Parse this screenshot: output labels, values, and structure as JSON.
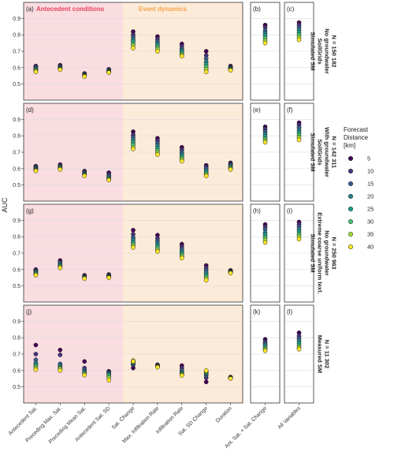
{
  "y_axis_label": "AUC",
  "y_ticks": [
    "0.5",
    "0.6",
    "0.7",
    "0.8",
    "0.9"
  ],
  "region_labels": {
    "antecedent": "Antecedent conditions",
    "event": "Event dynamics"
  },
  "colors": {
    "antecedent_bg": "#f9dde1",
    "event_bg": "#fcebd8",
    "antecedent_title": "#e8425e",
    "event_title": "#f5a24a",
    "panel_border": "#333333",
    "grid": "#dcdcdc"
  },
  "x_categories": [
    "Antecedent Sat.",
    "Preceding Max. Sat.",
    "Preceding Mean Sat.",
    "Antecedent Sat. SD",
    "Sat. Change",
    "Max. Infiltration Rate",
    "Infiltration Rate",
    "Sat. SD Change",
    "Duration"
  ],
  "x_category_b": "Ant. Sat. + Sat. Change",
  "x_category_c": "All Variables",
  "legend": {
    "title_lines": [
      "Forecast",
      "Distance",
      "[km]"
    ],
    "items": [
      {
        "label": "5",
        "color": "#440154"
      },
      {
        "label": "10",
        "color": "#46327e"
      },
      {
        "label": "15",
        "color": "#365c8d"
      },
      {
        "label": "20",
        "color": "#277f8e"
      },
      {
        "label": "25",
        "color": "#1fa187"
      },
      {
        "label": "30",
        "color": "#4ac16d"
      },
      {
        "label": "35",
        "color": "#a0da39"
      },
      {
        "label": "40",
        "color": "#fde725"
      }
    ]
  },
  "chart_data": {
    "type": "scatter",
    "ylabel": "AUC",
    "ylim": [
      0.45,
      0.95
    ],
    "series_names": [
      "5",
      "10",
      "15",
      "20",
      "25",
      "30",
      "35",
      "40"
    ],
    "rows": [
      {
        "strip_lines": [
          "Simulated SM",
          "SoilGrids",
          "No groundwater",
          "N = 150 182"
        ],
        "panels": [
          {
            "tag": "(a)",
            "categories": [
              "Antecedent Sat.",
              "Preceding Max. Sat.",
              "Preceding Mean Sat.",
              "Antecedent Sat. SD",
              "Sat. Change",
              "Max. Infiltration Rate",
              "Infiltration Rate",
              "Sat. SD Change",
              "Duration"
            ],
            "values": [
              [
                0.61,
                0.605,
                0.6,
                0.595,
                0.59,
                0.585,
                0.58,
                0.575
              ],
              [
                0.615,
                0.61,
                0.605,
                0.6,
                0.597,
                0.594,
                0.591,
                0.588
              ],
              [
                0.565,
                0.562,
                0.559,
                0.556,
                0.553,
                0.55,
                0.548,
                0.546
              ],
              [
                0.59,
                0.587,
                0.584,
                0.581,
                0.578,
                0.575,
                0.572,
                0.57
              ],
              [
                0.82,
                0.8,
                0.785,
                0.77,
                0.76,
                0.745,
                0.735,
                0.72
              ],
              [
                0.79,
                0.775,
                0.76,
                0.748,
                0.736,
                0.725,
                0.713,
                0.7
              ],
              [
                0.745,
                0.73,
                0.715,
                0.705,
                0.695,
                0.685,
                0.677,
                0.67
              ],
              [
                0.7,
                0.675,
                0.655,
                0.635,
                0.62,
                0.605,
                0.59,
                0.575
              ],
              [
                0.61,
                0.605,
                0.6,
                0.597,
                0.594,
                0.59,
                0.587,
                0.584
              ]
            ]
          },
          {
            "tag": "(b)",
            "categories": [
              "Ant. Sat. + Sat. Change"
            ],
            "values": [
              [
                0.86,
                0.845,
                0.825,
                0.81,
                0.795,
                0.78,
                0.765,
                0.75
              ]
            ]
          },
          {
            "tag": "(c)",
            "categories": [
              "All Variables"
            ],
            "values": [
              [
                0.875,
                0.86,
                0.845,
                0.83,
                0.815,
                0.8,
                0.785,
                0.77
              ]
            ]
          }
        ]
      },
      {
        "strip_lines": [
          "Simulated SM",
          "SoilGrids",
          "With groundwater",
          "N = 142 311"
        ],
        "panels": [
          {
            "tag": "(d)",
            "categories": [
              "Antecedent Sat.",
              "Preceding Max. Sat.",
              "Preceding Mean Sat.",
              "Antecedent Sat. SD",
              "Sat. Change",
              "Max. Infiltration Rate",
              "Infiltration Rate",
              "Sat. SD Change",
              "Duration"
            ],
            "values": [
              [
                0.615,
                0.61,
                0.605,
                0.6,
                0.596,
                0.592,
                0.589,
                0.586
              ],
              [
                0.625,
                0.62,
                0.615,
                0.61,
                0.606,
                0.602,
                0.598,
                0.595
              ],
              [
                0.585,
                0.58,
                0.575,
                0.57,
                0.566,
                0.562,
                0.559,
                0.556
              ],
              [
                0.575,
                0.565,
                0.555,
                0.548,
                0.542,
                0.537,
                0.533,
                0.53
              ],
              [
                0.825,
                0.805,
                0.79,
                0.775,
                0.76,
                0.745,
                0.73,
                0.72
              ],
              [
                0.785,
                0.77,
                0.755,
                0.74,
                0.725,
                0.71,
                0.697,
                0.685
              ],
              [
                0.73,
                0.715,
                0.7,
                0.688,
                0.676,
                0.665,
                0.655,
                0.645
              ],
              [
                0.62,
                0.61,
                0.6,
                0.59,
                0.58,
                0.57,
                0.562,
                0.555
              ],
              [
                0.635,
                0.628,
                0.622,
                0.616,
                0.61,
                0.605,
                0.6,
                0.595
              ]
            ]
          },
          {
            "tag": "(e)",
            "categories": [
              "Ant. Sat. + Sat. Change"
            ],
            "values": [
              [
                0.855,
                0.84,
                0.825,
                0.81,
                0.795,
                0.782,
                0.77,
                0.76
              ]
            ]
          },
          {
            "tag": "(f)",
            "categories": [
              "All Variables"
            ],
            "values": [
              [
                0.88,
                0.865,
                0.85,
                0.835,
                0.82,
                0.805,
                0.79,
                0.775
              ]
            ]
          }
        ]
      },
      {
        "strip_lines": [
          "Simulated SM",
          "Extreme coarse uniform text.",
          "No groundwater",
          "N = 250 963"
        ],
        "panels": [
          {
            "tag": "(g)",
            "categories": [
              "Antecedent Sat.",
              "Preceding Max. Sat.",
              "Preceding Mean Sat.",
              "Antecedent Sat. SD",
              "Sat. Change",
              "Max. Infiltration Rate",
              "Infiltration Rate",
              "Sat. SD Change",
              "Duration"
            ],
            "values": [
              [
                0.6,
                0.595,
                0.59,
                0.585,
                0.58,
                0.575,
                0.57,
                0.565
              ],
              [
                0.655,
                0.645,
                0.64,
                0.63,
                0.625,
                0.62,
                0.615,
                0.61
              ],
              [
                0.565,
                0.562,
                0.559,
                0.556,
                0.553,
                0.55,
                0.547,
                0.545
              ],
              [
                0.57,
                0.567,
                0.564,
                0.561,
                0.558,
                0.555,
                0.552,
                0.55
              ],
              [
                0.84,
                0.815,
                0.795,
                0.78,
                0.765,
                0.755,
                0.745,
                0.735
              ],
              [
                0.81,
                0.79,
                0.775,
                0.76,
                0.745,
                0.732,
                0.72,
                0.71
              ],
              [
                0.755,
                0.74,
                0.725,
                0.712,
                0.7,
                0.69,
                0.68,
                0.67
              ],
              [
                0.625,
                0.61,
                0.595,
                0.58,
                0.567,
                0.555,
                0.545,
                0.535
              ],
              [
                0.595,
                0.592,
                0.589,
                0.586,
                0.584,
                0.582,
                0.58,
                0.578
              ]
            ]
          },
          {
            "tag": "(h)",
            "categories": [
              "Ant. Sat. + Sat. Change"
            ],
            "values": [
              [
                0.875,
                0.86,
                0.845,
                0.825,
                0.81,
                0.795,
                0.78,
                0.765
              ]
            ]
          },
          {
            "tag": "(i)",
            "categories": [
              "All Variables"
            ],
            "values": [
              [
                0.89,
                0.875,
                0.86,
                0.845,
                0.83,
                0.815,
                0.8,
                0.785
              ]
            ]
          }
        ]
      },
      {
        "strip_lines": [
          "Measured SM",
          "N = 11 302"
        ],
        "panels": [
          {
            "tag": "(j)",
            "categories": [
              "Antecedent Sat.",
              "Preceding Max. Sat.",
              "Preceding Mean Sat.",
              "Antecedent Sat. SD",
              "Sat. Change",
              "Max. Infiltration Rate",
              "Infiltration Rate",
              "Sat. SD Change",
              "Duration"
            ],
            "values": [
              [
                0.755,
                0.7,
                0.665,
                0.645,
                0.635,
                0.625,
                0.615,
                0.605
              ],
              [
                0.725,
                0.695,
                0.64,
                0.63,
                0.62,
                0.615,
                0.61,
                0.6
              ],
              [
                0.655,
                0.615,
                0.605,
                0.595,
                0.588,
                0.582,
                0.577,
                0.572
              ],
              [
                0.595,
                0.59,
                0.585,
                0.58,
                0.575,
                0.565,
                0.555,
                0.54
              ],
              [
                0.615,
                0.635,
                0.64,
                0.645,
                0.65,
                0.655,
                0.66,
                0.655
              ],
              [
                0.635,
                0.632,
                0.63,
                0.628,
                0.626,
                0.624,
                0.622,
                0.62
              ],
              [
                0.63,
                0.615,
                0.6,
                0.59,
                0.583,
                0.578,
                0.574,
                0.57
              ],
              [
                0.53,
                0.555,
                0.57,
                0.58,
                0.585,
                0.59,
                0.595,
                0.6
              ],
              [
                0.56,
                0.558,
                0.556,
                0.555,
                0.554,
                0.553,
                0.552,
                0.551
              ]
            ]
          },
          {
            "tag": "(k)",
            "categories": [
              "Ant. Sat. + Sat. Change"
            ],
            "values": [
              [
                0.79,
                0.775,
                0.765,
                0.755,
                0.745,
                0.735,
                0.727,
                0.72
              ]
            ]
          },
          {
            "tag": "(l)",
            "categories": [
              "All Variables"
            ],
            "values": [
              [
                0.83,
                0.81,
                0.795,
                0.78,
                0.765,
                0.75,
                0.74,
                0.73
              ]
            ]
          }
        ]
      }
    ]
  }
}
